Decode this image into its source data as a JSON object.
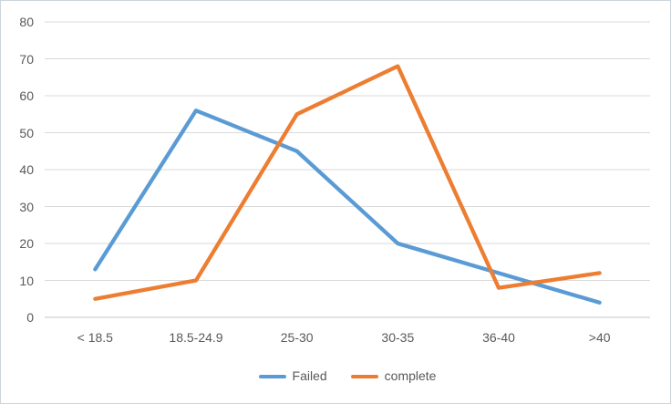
{
  "chart_data": {
    "type": "line",
    "title": "",
    "xlabel": "",
    "ylabel": "",
    "categories": [
      "< 18.5",
      "18.5-24.9",
      "25-30",
      "30-35",
      "36-40",
      ">40"
    ],
    "series": [
      {
        "name": "Failed",
        "color": "#5B9BD5",
        "values": [
          13,
          56,
          45,
          20,
          12,
          4
        ]
      },
      {
        "name": "complete",
        "color": "#ED7D31",
        "values": [
          5,
          10,
          55,
          68,
          8,
          12
        ]
      }
    ],
    "ylim": [
      0,
      80
    ],
    "ytick_step": 10,
    "ytick_labels": [
      "0",
      "10",
      "20",
      "30",
      "40",
      "50",
      "60",
      "70",
      "80"
    ],
    "grid": "horizontal",
    "legend_position": "bottom-center",
    "colors": {
      "gridline": "#D9D9D9",
      "axis_line": "#C6C6C6",
      "axis_text": "#595959",
      "background": "#FFFFFF",
      "frame_border": "#CDD4DA"
    }
  }
}
